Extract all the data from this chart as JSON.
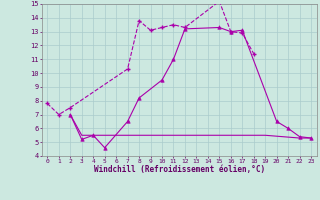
{
  "xlabel": "Windchill (Refroidissement éolien,°C)",
  "background_color": "#cce8e0",
  "grid_color": "#aacccc",
  "line_color": "#aa00aa",
  "xlim": [
    -0.5,
    23.5
  ],
  "ylim": [
    4,
    15
  ],
  "xticks": [
    0,
    1,
    2,
    3,
    4,
    5,
    6,
    7,
    8,
    9,
    10,
    11,
    12,
    13,
    14,
    15,
    16,
    17,
    18,
    19,
    20,
    21,
    22,
    23
  ],
  "yticks": [
    4,
    5,
    6,
    7,
    8,
    9,
    10,
    11,
    12,
    13,
    14,
    15
  ],
  "line1_x": [
    0,
    1,
    2,
    7,
    8,
    9,
    10,
    11,
    12,
    15,
    16,
    17,
    18
  ],
  "line1_y": [
    7.8,
    7.0,
    7.5,
    10.3,
    13.8,
    13.1,
    13.3,
    13.5,
    13.3,
    15.2,
    13.0,
    12.9,
    11.4
  ],
  "line2_x": [
    2,
    3,
    4,
    5,
    7,
    8,
    10,
    11,
    12,
    15,
    16,
    17,
    20,
    21,
    22,
    23
  ],
  "line2_y": [
    7.0,
    5.2,
    5.5,
    4.6,
    6.5,
    8.2,
    9.5,
    11.0,
    13.2,
    13.3,
    13.0,
    13.1,
    6.5,
    6.0,
    5.4,
    5.3
  ],
  "line3_x": [
    2,
    3,
    12,
    19,
    22,
    23
  ],
  "line3_y": [
    7.0,
    5.5,
    5.5,
    5.5,
    5.3,
    5.3
  ]
}
